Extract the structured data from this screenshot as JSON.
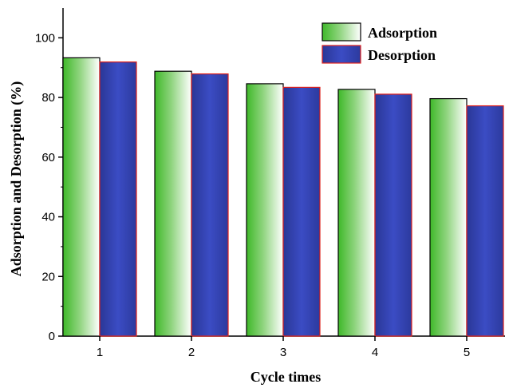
{
  "chart_data": {
    "type": "bar",
    "title": "",
    "xlabel": "Cycle times",
    "ylabel": "Adsorption and Desorption (%)",
    "categories": [
      "1",
      "2",
      "3",
      "4",
      "5"
    ],
    "series": [
      {
        "name": "Adsorption",
        "values": [
          93.3,
          88.8,
          84.6,
          82.7,
          79.6
        ],
        "fill": "gradient-green-white",
        "colors": {
          "start": "#3fb82a",
          "end": "#ffffff",
          "border": "#000000"
        }
      },
      {
        "name": "Desorption",
        "values": [
          91.9,
          87.9,
          83.4,
          81.1,
          77.2
        ],
        "fill": "gradient-blue",
        "colors": {
          "start": "#2a3a9a",
          "end": "#3c4fc8",
          "border": "#e0201c"
        }
      }
    ],
    "ylim": [
      0,
      110
    ],
    "yticks": [
      "0",
      "20",
      "40",
      "60",
      "80",
      "100"
    ],
    "grid": false,
    "legend_position": "top-right"
  }
}
